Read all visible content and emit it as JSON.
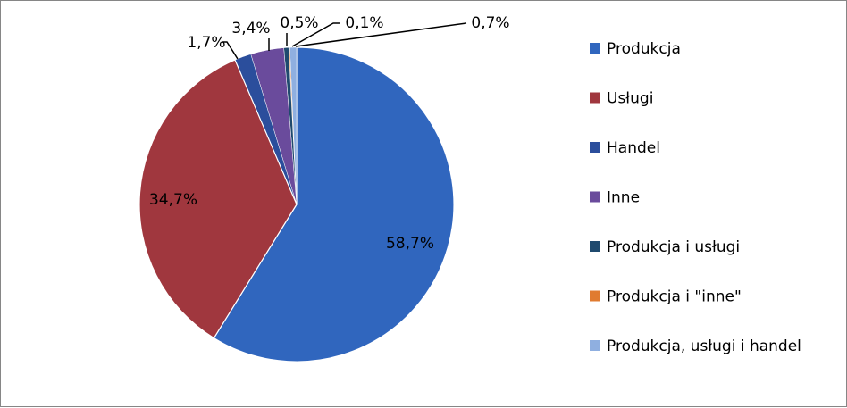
{
  "chart_data": {
    "type": "pie",
    "title": "",
    "categories": [
      "Produkcja",
      "Usługi",
      "Handel",
      "Inne",
      "Produkcja i usługi",
      "Produkcja i \"inne\"",
      "Produkcja, usługi i handel"
    ],
    "values": [
      58.7,
      34.7,
      1.7,
      3.4,
      0.5,
      0.1,
      0.7
    ],
    "data_labels": [
      "58,7%",
      "34,7%",
      "1,7%",
      "3,4%",
      "0,5%",
      "0,1%",
      "0,7%"
    ],
    "colors": [
      "#3066BE",
      "#A0373E",
      "#2B4E9C",
      "#6A4B9C",
      "#1F4A6E",
      "#E07B30",
      "#8FAFE0"
    ],
    "legend_position": "right"
  }
}
